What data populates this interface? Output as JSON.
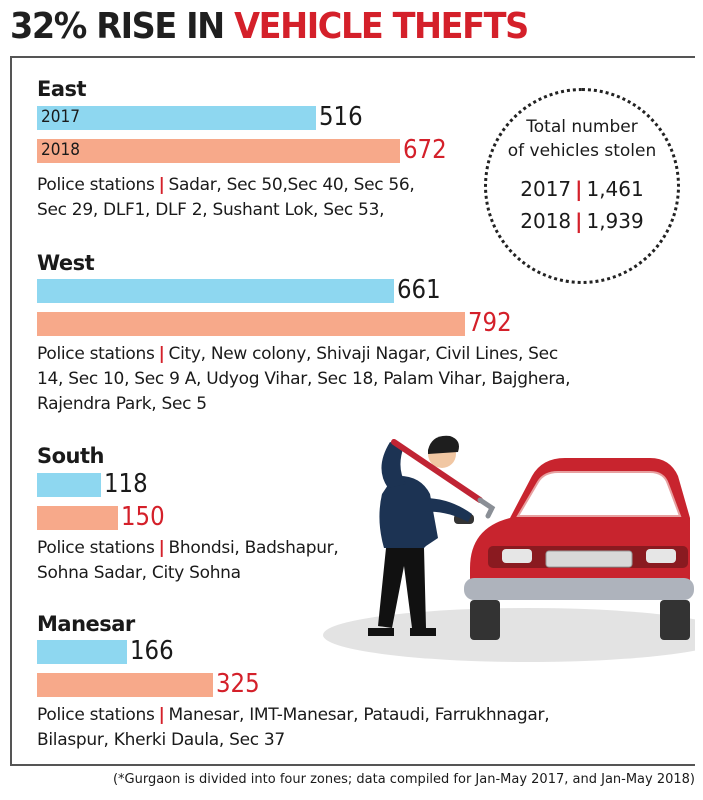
{
  "headline": {
    "lead": "32% RISE IN",
    "accent": "VEHICLE THEFTS"
  },
  "colors": {
    "bar_2017": "#8ed7f0",
    "bar_2018": "#f7a98a",
    "accent": "#d4202a",
    "car": "#c8242e"
  },
  "chart_data": {
    "type": "bar",
    "orientation": "horizontal",
    "title": "32% RISE IN VEHICLE THEFTS",
    "categories": [
      "East",
      "West",
      "South",
      "Manesar"
    ],
    "series": [
      {
        "name": "2017",
        "values": [
          516,
          661,
          118,
          166
        ]
      },
      {
        "name": "2018",
        "values": [
          672,
          792,
          150,
          325
        ]
      }
    ],
    "xlim": [
      0,
      800
    ],
    "grid": false
  },
  "zones": [
    {
      "name": "East",
      "stations_label": "Police stations",
      "stations": [
        "Sadar, Sec 50,Sec 40, Sec 56,",
        "Sec 29, DLF1, DLF 2, Sushant Lok, Sec 53,"
      ]
    },
    {
      "name": "West",
      "stations_label": "Police stations",
      "stations": [
        "City, New colony, Shivaji Nagar, Civil Lines, Sec",
        "14, Sec 10, Sec 9 A, Udyog Vihar, Sec 18, Palam Vihar, Bajghera,",
        "Rajendra Park, Sec 5"
      ]
    },
    {
      "name": "South",
      "stations_label": "Police stations",
      "stations": [
        "Bhondsi, Badshapur,",
        "Sohna Sadar, City Sohna"
      ]
    },
    {
      "name": "Manesar",
      "stations_label": "Police stations",
      "stations": [
        "Manesar, IMT-Manesar, Pataudi, Farrukhnagar,",
        "Bilaspur, Kherki Daula, Sec 37"
      ]
    }
  ],
  "bar_year_labels": [
    "2017",
    "2018"
  ],
  "totals": {
    "heading_line1": "Total number",
    "heading_line2": "of vehicles stolen",
    "rows": [
      {
        "year": "2017",
        "value": "1,461"
      },
      {
        "year": "2018",
        "value": "1,939"
      }
    ]
  },
  "footnote": "(*Gurgaon is divided into four zones; data compiled for Jan-May 2017, and Jan-May 2018)",
  "illustration": {
    "name": "thief-breaking-into-car",
    "icons": [
      "thief-figure-icon",
      "crowbar-icon",
      "car-icon"
    ]
  }
}
